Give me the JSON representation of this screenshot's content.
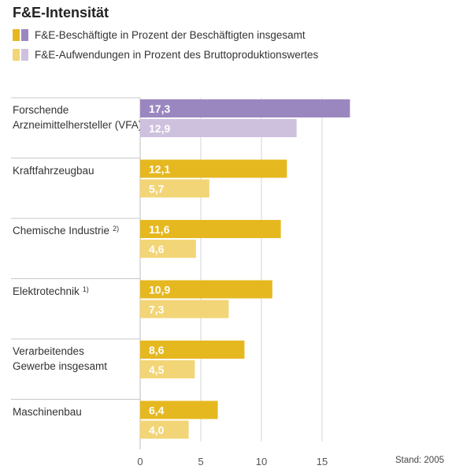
{
  "title": "F&E-Intensität",
  "legend": [
    {
      "label": "F&E-Beschäftigte in Prozent der Beschäftigten insgesamt",
      "swatch_colors": [
        "#e6b820",
        "#9b87c0"
      ]
    },
    {
      "label": "F&E-Aufwendungen in Prozent des Bruttoproduktionswertes",
      "swatch_colors": [
        "#f2d577",
        "#cec1de"
      ]
    }
  ],
  "chart_data": {
    "type": "bar",
    "orientation": "horizontal",
    "categories": [
      {
        "lines": [
          "Forschende",
          "Arzneimittelhersteller (VFA)"
        ],
        "note": ""
      },
      {
        "lines": [
          "Kraftfahrzeugbau"
        ],
        "note": ""
      },
      {
        "lines": [
          "Chemische Industrie"
        ],
        "note": "2)"
      },
      {
        "lines": [
          "Elektrotechnik"
        ],
        "note": "1)"
      },
      {
        "lines": [
          "Verarbeitendes",
          "Gewerbe insgesamt"
        ],
        "note": ""
      },
      {
        "lines": [
          "Maschinenbau"
        ],
        "note": ""
      }
    ],
    "series": [
      {
        "name": "F&E-Beschäftigte in Prozent der Beschäftigten insgesamt",
        "values": [
          17.3,
          12.1,
          11.6,
          10.9,
          8.6,
          6.4
        ],
        "value_labels": [
          "17,3",
          "12,1",
          "11,6",
          "10,9",
          "8,6",
          "6,4"
        ],
        "colors": [
          "#9b87c0",
          "#e6b820",
          "#e6b820",
          "#e6b820",
          "#e6b820",
          "#e6b820"
        ]
      },
      {
        "name": "F&E-Aufwendungen in Prozent des Bruttoproduktionswertes",
        "values": [
          12.9,
          5.7,
          4.6,
          7.3,
          4.5,
          4.0
        ],
        "value_labels": [
          "12,9",
          "5,7",
          "4,6",
          "7,3",
          "4,5",
          "4,0"
        ],
        "colors": [
          "#cec1de",
          "#f2d577",
          "#f2d577",
          "#f2d577",
          "#f2d577",
          "#f2d577"
        ]
      }
    ],
    "xlim": [
      0,
      18.5
    ],
    "xticks": [
      0,
      5,
      10,
      15
    ],
    "xtick_labels": [
      "0",
      "5",
      "10",
      "15"
    ],
    "grid": true,
    "note": "Stand: 2005"
  }
}
